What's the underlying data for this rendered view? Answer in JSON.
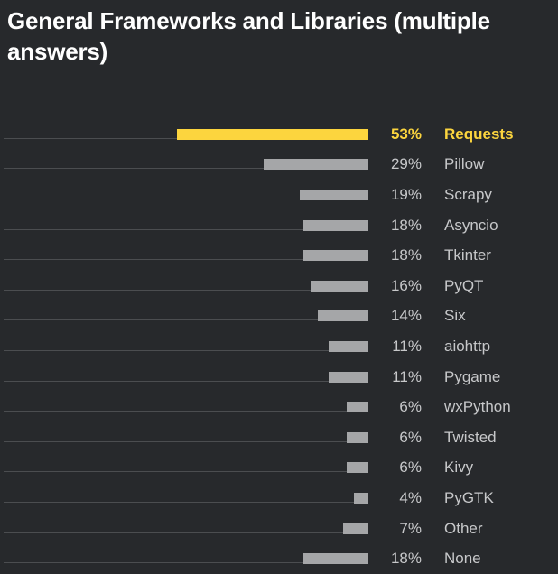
{
  "title": "General Frameworks and Libraries (multiple answers)",
  "colors": {
    "background": "#27292c",
    "title_text": "#ffffff",
    "label_text": "#c7c8ca",
    "bar": "#a5a6a8",
    "highlight": "#fcd53e",
    "track_line": "#4b4d50"
  },
  "chart_data": {
    "type": "bar",
    "orientation": "horizontal",
    "title": "General Frameworks and Libraries (multiple answers)",
    "categories": [
      "Requests",
      "Pillow",
      "Scrapy",
      "Asyncio",
      "Tkinter",
      "PyQT",
      "Six",
      "aiohttp",
      "Pygame",
      "wxPython",
      "Twisted",
      "Kivy",
      "PyGTK",
      "Other",
      "None"
    ],
    "values": [
      53,
      29,
      19,
      18,
      18,
      16,
      14,
      11,
      11,
      6,
      6,
      6,
      4,
      7,
      18
    ],
    "value_labels": [
      "53%",
      "29%",
      "19%",
      "18%",
      "18%",
      "16%",
      "14%",
      "11%",
      "11%",
      "6%",
      "6%",
      "6%",
      "4%",
      "7%",
      "18%"
    ],
    "value_suffix": "%",
    "xlim": [
      0,
      100
    ],
    "highlight_index": 0,
    "bars_right_aligned": true,
    "grid": false,
    "legend": false
  }
}
